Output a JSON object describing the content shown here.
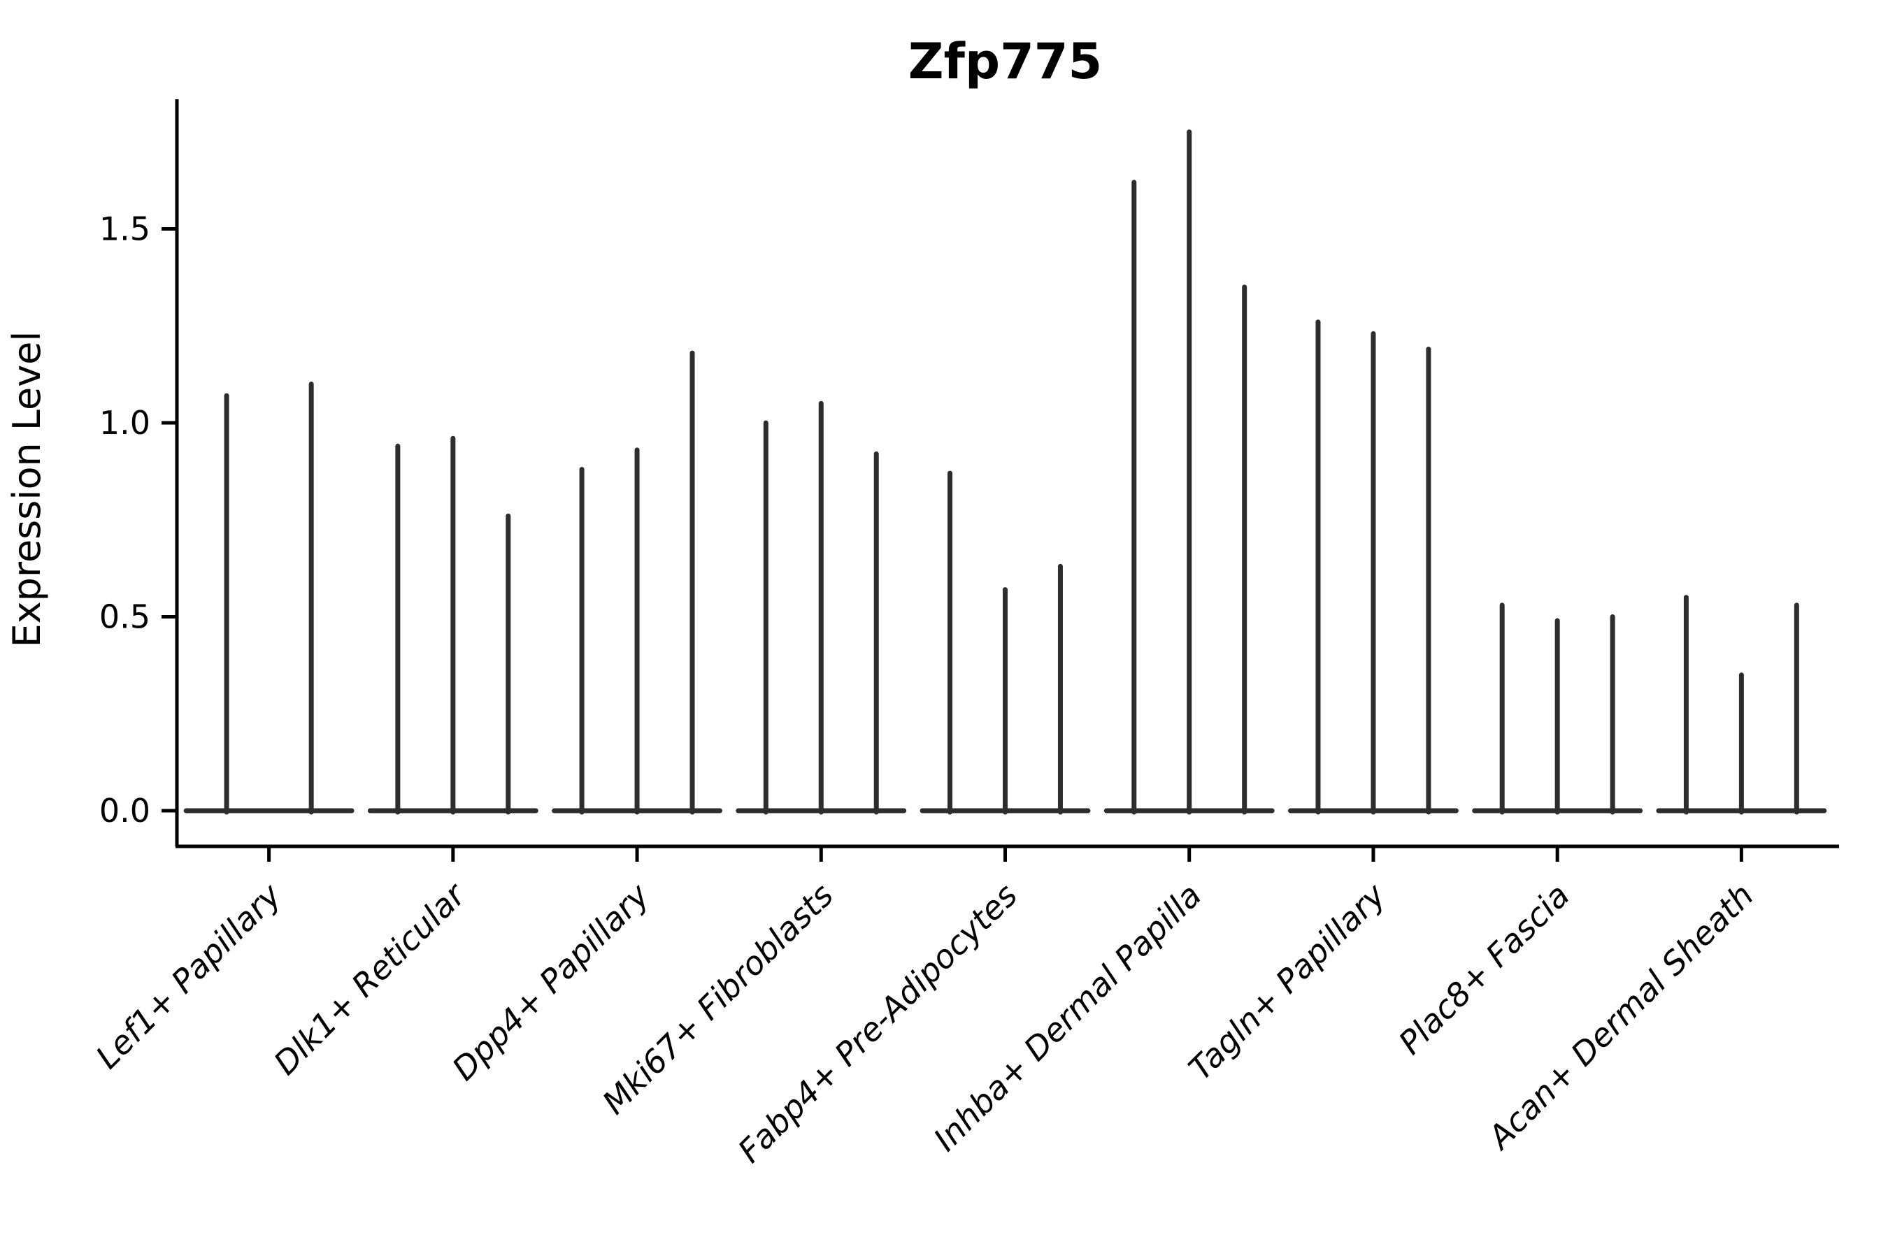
{
  "title": "Zfp775",
  "colors": {
    "background": "#ffffff",
    "violin_stroke": "#2d2d2d",
    "axis_stroke": "#000000",
    "text": "#000000"
  },
  "chart_data": {
    "type": "violin",
    "title": "Zfp775",
    "xlabel": "",
    "ylabel": "Expression Level",
    "ylim": [
      -0.09,
      1.83
    ],
    "yticks": [
      0.0,
      0.5,
      1.0,
      1.5
    ],
    "ytick_labels": [
      "0.0",
      "0.5",
      "1.0",
      "1.5"
    ],
    "grid": false,
    "legend_position": "none",
    "categories": [
      "Lef1+ Papillary",
      "Dlk1+ Reticular",
      "Dpp4+ Papillary",
      "Mki67+ Fibroblasts",
      "Fabp4+ Pre-Adipocytes",
      "Inhba+ Dermal Papilla",
      "Tagln+ Papillary",
      "Plac8+ Fascia",
      "Acan+ Dermal Sheath"
    ],
    "violin_description": "Each category shows thin collapsed violins (density mass at 0 with a narrow spike to the max expression value). 'offset' is the violin center position in category-width units; 'peak' is the top of the spike in Expression Level units; every violin also has a flat base at y=0 spanning the category width.",
    "series": [
      {
        "category": "Lef1+ Papillary",
        "violins": [
          {
            "offset": -0.23,
            "peak": 1.07
          },
          {
            "offset": 0.23,
            "peak": 1.1
          }
        ]
      },
      {
        "category": "Dlk1+ Reticular",
        "violins": [
          {
            "offset": -0.3,
            "peak": 0.94
          },
          {
            "offset": 0.0,
            "peak": 0.96
          },
          {
            "offset": 0.3,
            "peak": 0.76
          }
        ]
      },
      {
        "category": "Dpp4+ Papillary",
        "violins": [
          {
            "offset": -0.3,
            "peak": 0.88
          },
          {
            "offset": 0.0,
            "peak": 0.93
          },
          {
            "offset": 0.3,
            "peak": 1.18
          }
        ]
      },
      {
        "category": "Mki67+ Fibroblasts",
        "violins": [
          {
            "offset": -0.3,
            "peak": 1.0
          },
          {
            "offset": 0.0,
            "peak": 1.05
          },
          {
            "offset": 0.3,
            "peak": 0.92
          }
        ]
      },
      {
        "category": "Fabp4+ Pre-Adipocytes",
        "violins": [
          {
            "offset": -0.3,
            "peak": 0.87
          },
          {
            "offset": 0.0,
            "peak": 0.57
          },
          {
            "offset": 0.3,
            "peak": 0.63
          }
        ]
      },
      {
        "category": "Inhba+ Dermal Papilla",
        "violins": [
          {
            "offset": -0.3,
            "peak": 1.62
          },
          {
            "offset": 0.0,
            "peak": 1.75
          },
          {
            "offset": 0.3,
            "peak": 1.35
          }
        ]
      },
      {
        "category": "Tagln+ Papillary",
        "violins": [
          {
            "offset": -0.3,
            "peak": 1.26
          },
          {
            "offset": 0.0,
            "peak": 1.23
          },
          {
            "offset": 0.3,
            "peak": 1.19
          }
        ]
      },
      {
        "category": "Plac8+ Fascia",
        "violins": [
          {
            "offset": -0.3,
            "peak": 0.53
          },
          {
            "offset": 0.0,
            "peak": 0.49
          },
          {
            "offset": 0.3,
            "peak": 0.5
          }
        ]
      },
      {
        "category": "Acan+ Dermal Sheath",
        "violins": [
          {
            "offset": -0.3,
            "peak": 0.55
          },
          {
            "offset": 0.0,
            "peak": 0.35
          },
          {
            "offset": 0.3,
            "peak": 0.53
          }
        ]
      }
    ]
  }
}
